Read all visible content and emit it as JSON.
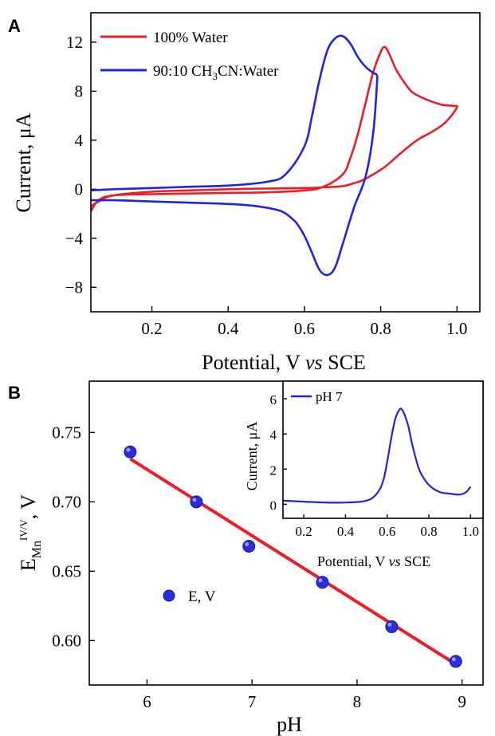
{
  "panel_a": {
    "label": "A"
  },
  "panel_b": {
    "label": "B"
  },
  "chart_data": [
    {
      "type": "line",
      "panel": "A",
      "xlabel": "Potential, V vs SCE",
      "ylabel": "Current, μA",
      "xlim": [
        0.04,
        1.06
      ],
      "ylim": [
        -10,
        14.4
      ],
      "x_ticks": [
        0.2,
        0.4,
        0.6,
        0.8,
        1.0
      ],
      "x_tick_labels": [
        "0.2",
        "0.4",
        "0.6",
        "0.8",
        "1.0"
      ],
      "y_ticks": [
        12,
        8,
        4,
        0,
        -4,
        -8
      ],
      "y_tick_labels": [
        "12",
        "8",
        "4",
        "0",
        "−4",
        "−8"
      ],
      "legend_position": "top-left",
      "series": [
        {
          "name": "100% Water",
          "color": "#ee1c24",
          "x": [
            0.04,
            0.06,
            0.1,
            0.2,
            0.3,
            0.4,
            0.5,
            0.6,
            0.65,
            0.7,
            0.72,
            0.74,
            0.76,
            0.78,
            0.8,
            0.81,
            0.82,
            0.84,
            0.86,
            0.88,
            0.9,
            0.93,
            0.96,
            0.99,
            1.0,
            0.98,
            0.96,
            0.93,
            0.9,
            0.87,
            0.84,
            0.81,
            0.78,
            0.75,
            0.72,
            0.7,
            0.65,
            0.6,
            0.5,
            0.4,
            0.3,
            0.2,
            0.1,
            0.06,
            0.04
          ],
          "y": [
            -1.8,
            -0.9,
            -0.5,
            -0.4,
            -0.35,
            -0.3,
            -0.25,
            -0.1,
            0.2,
            1.2,
            2.5,
            4.5,
            7.0,
            9.5,
            11.2,
            11.6,
            11.2,
            9.8,
            8.8,
            8.0,
            7.6,
            7.2,
            6.9,
            6.8,
            6.7,
            5.8,
            5.2,
            4.6,
            4.1,
            3.4,
            2.6,
            1.8,
            1.2,
            0.7,
            0.4,
            0.25,
            0.15,
            0.1,
            0.05,
            0.0,
            -0.1,
            -0.2,
            -0.5,
            -1.0,
            -1.4
          ]
        },
        {
          "name": "90:10 CH3CN:Water",
          "color": "#1d24e6",
          "x": [
            0.04,
            0.1,
            0.2,
            0.3,
            0.4,
            0.5,
            0.55,
            0.6,
            0.62,
            0.64,
            0.66,
            0.68,
            0.7,
            0.72,
            0.74,
            0.76,
            0.78,
            0.79,
            0.79,
            0.78,
            0.76,
            0.73,
            0.7,
            0.68,
            0.66,
            0.64,
            0.62,
            0.6,
            0.58,
            0.56,
            0.54,
            0.5,
            0.45,
            0.4,
            0.3,
            0.2,
            0.1,
            0.04
          ],
          "y": [
            -0.1,
            0.0,
            0.1,
            0.2,
            0.3,
            0.6,
            1.2,
            3.5,
            6.0,
            9.0,
            11.3,
            12.3,
            12.5,
            11.9,
            10.8,
            10.0,
            9.5,
            9.3,
            8.5,
            4.5,
            1.0,
            -1.5,
            -4.5,
            -6.4,
            -7.0,
            -6.6,
            -5.2,
            -3.8,
            -2.8,
            -2.2,
            -1.8,
            -1.5,
            -1.3,
            -1.2,
            -1.1,
            -1.0,
            -0.9,
            -0.9
          ]
        }
      ]
    },
    {
      "type": "scatter",
      "panel": "B",
      "xlabel": "pH",
      "ylabel": "E_Mn^IV/V, V",
      "xlim": [
        5.45,
        9.2
      ],
      "ylim": [
        0.568,
        0.787
      ],
      "x_ticks": [
        6,
        7,
        8,
        9
      ],
      "x_tick_labels": [
        "6",
        "7",
        "8",
        "9"
      ],
      "y_ticks": [
        0.75,
        0.7,
        0.65,
        0.6
      ],
      "y_tick_labels": [
        "0.75",
        "0.70",
        "0.65",
        "0.60"
      ],
      "legend_position": "center-left",
      "series": [
        {
          "name": "E, V",
          "color": "#1d24e6",
          "x": [
            5.84,
            6.47,
            6.97,
            7.67,
            8.33,
            8.94
          ],
          "y": [
            0.736,
            0.7,
            0.668,
            0.642,
            0.61,
            0.585
          ]
        }
      ],
      "fit_line": {
        "color": "#ee1c24",
        "x": [
          5.84,
          8.94
        ],
        "y": [
          0.731,
          0.583
        ]
      }
    },
    {
      "type": "line",
      "panel": "B-inset",
      "xlabel": "Potential, V vs SCE",
      "ylabel": "Current, μA",
      "xlim": [
        0.1,
        1.06
      ],
      "ylim": [
        -0.8,
        7.0
      ],
      "x_ticks": [
        0.2,
        0.4,
        0.6,
        0.8,
        1.0
      ],
      "x_tick_labels": [
        "0.2",
        "0.4",
        "0.6",
        "0.8",
        "1.0"
      ],
      "y_ticks": [
        6,
        4,
        2,
        0
      ],
      "y_tick_labels": [
        "6",
        "4",
        "2",
        "0"
      ],
      "legend_position": "top-left",
      "series": [
        {
          "name": "pH 7",
          "color": "#1d24e6",
          "x": [
            0.1,
            0.2,
            0.3,
            0.4,
            0.5,
            0.55,
            0.58,
            0.6,
            0.62,
            0.64,
            0.66,
            0.67,
            0.68,
            0.7,
            0.72,
            0.74,
            0.76,
            0.8,
            0.85,
            0.9,
            0.95,
            0.98,
            1.0
          ],
          "y": [
            0.2,
            0.15,
            0.1,
            0.1,
            0.2,
            0.6,
            1.3,
            2.4,
            3.8,
            4.9,
            5.4,
            5.4,
            5.2,
            4.5,
            3.4,
            2.5,
            1.8,
            1.1,
            0.7,
            0.6,
            0.55,
            0.7,
            1.0
          ]
        }
      ]
    }
  ]
}
